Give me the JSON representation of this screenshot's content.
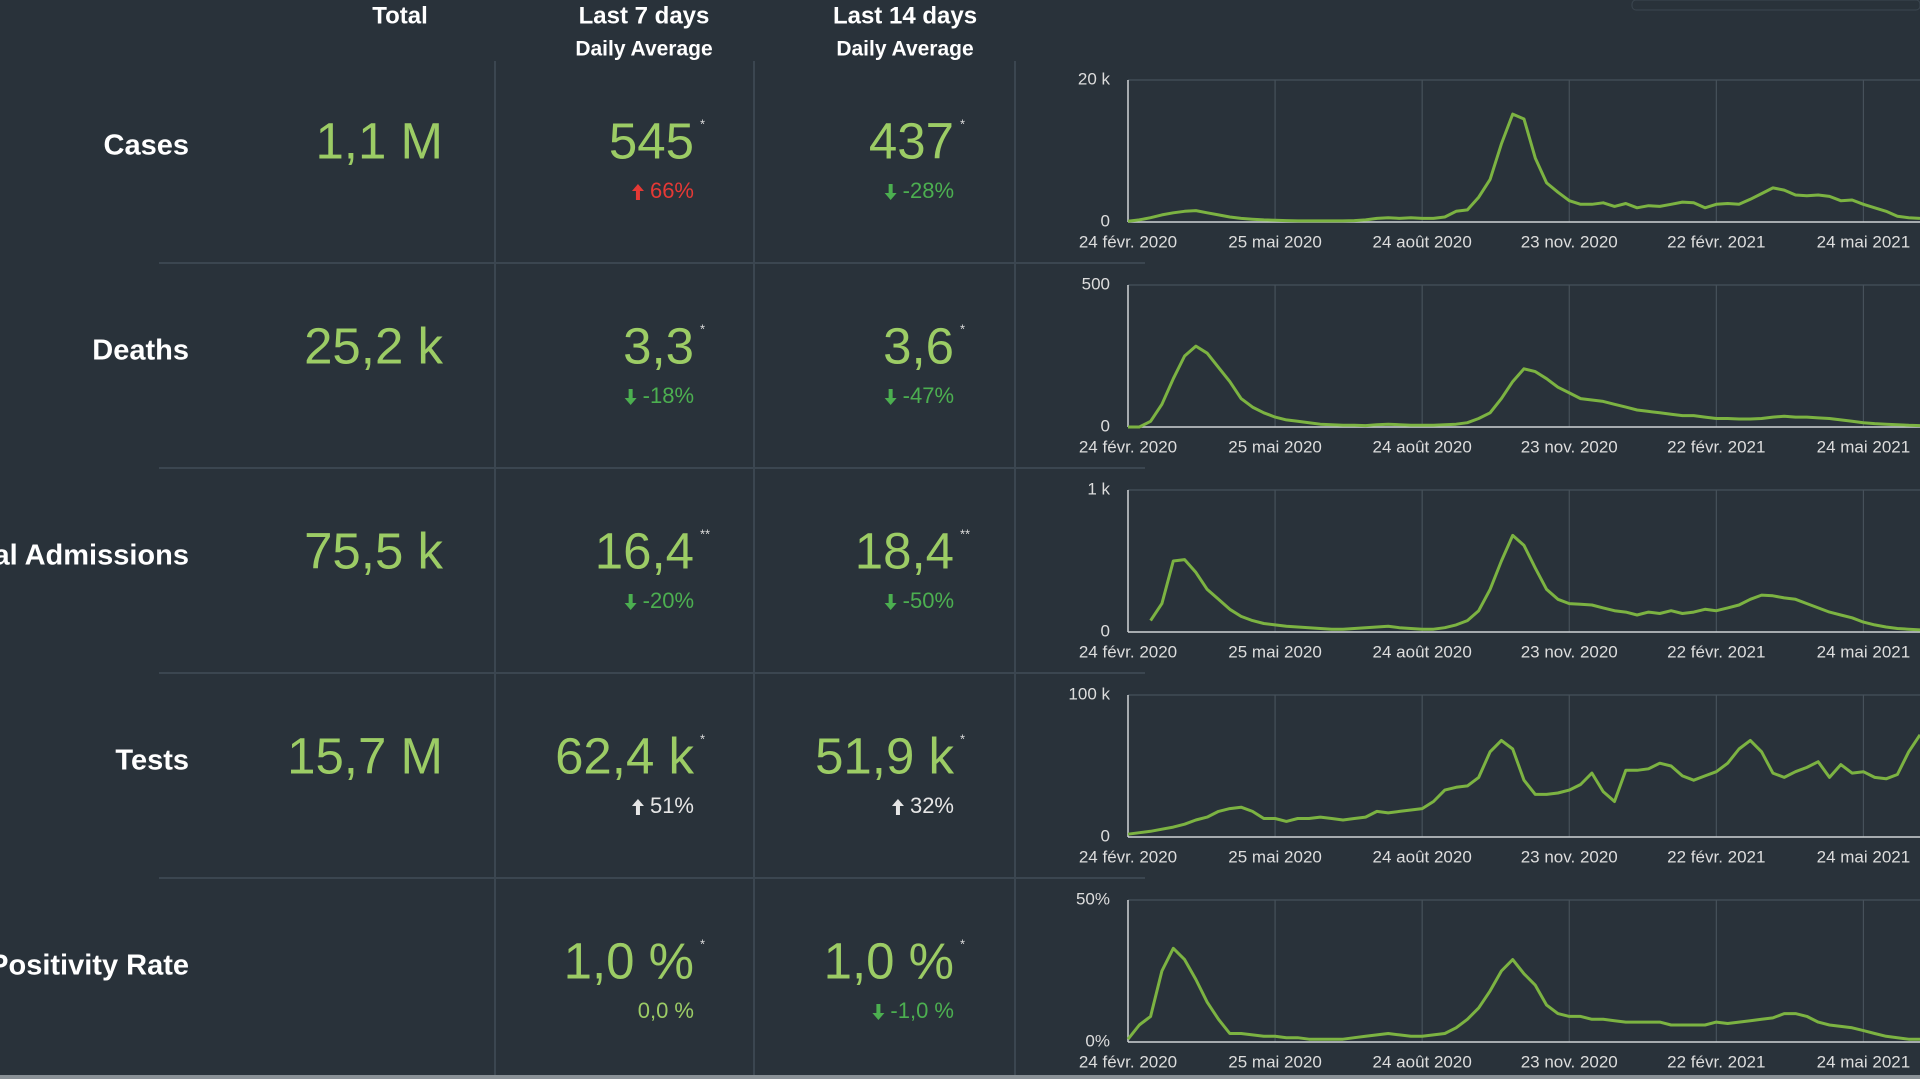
{
  "header": {
    "total": "Total",
    "last7": "Last 7 days",
    "last7_sub": "Daily Average",
    "last14": "Last 14 days",
    "last14_sub": "Daily Average"
  },
  "rows": [
    {
      "label": "Cases",
      "total": "1,1 M",
      "last7": {
        "value": "545",
        "note": "*",
        "change": "66%",
        "trend": "up",
        "color": "#e53935"
      },
      "last14": {
        "value": "437",
        "note": "*",
        "change": "-28%",
        "trend": "down",
        "color": "#4caf50"
      }
    },
    {
      "label": "Deaths",
      "total": "25,2 k",
      "last7": {
        "value": "3,3",
        "note": "*",
        "change": "-18%",
        "trend": "down",
        "color": "#4caf50"
      },
      "last14": {
        "value": "3,6",
        "note": "*",
        "change": "-47%",
        "trend": "down",
        "color": "#4caf50"
      }
    },
    {
      "label": "Hospital Admissions",
      "total": "75,5 k",
      "last7": {
        "value": "16,4",
        "note": "**",
        "change": "-20%",
        "trend": "down",
        "color": "#4caf50"
      },
      "last14": {
        "value": "18,4",
        "note": "**",
        "change": "-50%",
        "trend": "down",
        "color": "#4caf50"
      }
    },
    {
      "label": "Tests",
      "total": "15,7 M",
      "last7": {
        "value": "62,4 k",
        "note": "*",
        "change": "51%",
        "trend": "up",
        "color": "#e6e6e6"
      },
      "last14": {
        "value": "51,9 k",
        "note": "*",
        "change": "32%",
        "trend": "up",
        "color": "#e6e6e6"
      }
    },
    {
      "label": "Positivity Rate",
      "last7": {
        "value": "1,0 %",
        "note": "*",
        "change": "0,0 %",
        "color": "#9ccc65"
      },
      "last14": {
        "value": "1,0 %",
        "note": "*",
        "change": "-1,0 %",
        "trend": "down",
        "color": "#4caf50"
      }
    }
  ],
  "chart_data": [
    {
      "type": "line",
      "color": "#7cb342",
      "ylim": [
        0,
        20000
      ],
      "yticks": [
        0,
        {
          "value": 20000,
          "label": "20 k"
        }
      ],
      "grid": true,
      "categories": [
        "24 févr. 2020",
        null,
        null,
        null,
        null,
        null,
        null,
        null,
        null,
        null,
        null,
        null,
        null,
        "25 mai 2020",
        null,
        null,
        null,
        null,
        null,
        null,
        null,
        null,
        null,
        null,
        null,
        null,
        "24 août 2020",
        null,
        null,
        null,
        null,
        null,
        null,
        null,
        null,
        null,
        null,
        null,
        null,
        "23 nov. 2020",
        null,
        null,
        null,
        null,
        null,
        null,
        null,
        null,
        null,
        null,
        null,
        null,
        "22 févr. 2021",
        null,
        null,
        null,
        null,
        null,
        null,
        null,
        null,
        null,
        null,
        null,
        null,
        "24 mai 2021",
        null,
        null,
        null,
        null,
        null
      ],
      "values": [
        100,
        300,
        600,
        1000,
        1300,
        1500,
        1600,
        1300,
        1000,
        700,
        500,
        400,
        300,
        250,
        200,
        150,
        150,
        150,
        150,
        150,
        200,
        300,
        500,
        600,
        500,
        600,
        500,
        500,
        700,
        1500,
        1700,
        3500,
        6000,
        11000,
        15200,
        14500,
        9000,
        5500,
        4200,
        3000,
        2500,
        2500,
        2700,
        2200,
        2600,
        2000,
        2300,
        2200,
        2500,
        2800,
        2700,
        2000,
        2500,
        2600,
        2500,
        3200,
        4000,
        4800,
        4500,
        3800,
        3700,
        3800,
        3600,
        3000,
        3100,
        2500,
        2000,
        1500,
        800,
        600,
        500
      ]
    },
    {
      "type": "line",
      "color": "#7cb342",
      "ylim": [
        0,
        500
      ],
      "yticks": [
        0,
        500
      ],
      "grid": true,
      "categories": [
        "24 févr. 2020",
        null,
        null,
        null,
        null,
        null,
        null,
        null,
        null,
        null,
        null,
        null,
        null,
        "25 mai 2020",
        null,
        null,
        null,
        null,
        null,
        null,
        null,
        null,
        null,
        null,
        null,
        null,
        "24 août 2020",
        null,
        null,
        null,
        null,
        null,
        null,
        null,
        null,
        null,
        null,
        null,
        null,
        "23 nov. 2020",
        null,
        null,
        null,
        null,
        null,
        null,
        null,
        null,
        null,
        null,
        null,
        null,
        "22 févr. 2021",
        null,
        null,
        null,
        null,
        null,
        null,
        null,
        null,
        null,
        null,
        null,
        null,
        "24 mai 2021",
        null,
        null,
        null,
        null,
        null
      ],
      "values": [
        0,
        0,
        20,
        80,
        170,
        250,
        285,
        260,
        210,
        160,
        100,
        70,
        50,
        35,
        25,
        20,
        15,
        10,
        8,
        6,
        6,
        5,
        8,
        10,
        8,
        6,
        6,
        6,
        8,
        10,
        15,
        30,
        50,
        100,
        160,
        205,
        195,
        170,
        140,
        120,
        100,
        95,
        90,
        80,
        70,
        60,
        55,
        50,
        45,
        40,
        40,
        35,
        30,
        30,
        28,
        28,
        30,
        35,
        38,
        35,
        35,
        32,
        30,
        25,
        20,
        15,
        12,
        10,
        8,
        6,
        5
      ]
    },
    {
      "type": "line",
      "color": "#7cb342",
      "ylim": [
        0,
        1000
      ],
      "yticks": [
        0,
        {
          "value": 1000,
          "label": "1 k"
        }
      ],
      "grid": true,
      "categories": [
        "24 févr. 2020",
        null,
        null,
        null,
        null,
        null,
        null,
        null,
        null,
        null,
        null,
        null,
        null,
        "25 mai 2020",
        null,
        null,
        null,
        null,
        null,
        null,
        null,
        null,
        null,
        null,
        null,
        null,
        "24 août 2020",
        null,
        null,
        null,
        null,
        null,
        null,
        null,
        null,
        null,
        null,
        null,
        null,
        "23 nov. 2020",
        null,
        null,
        null,
        null,
        null,
        null,
        null,
        null,
        null,
        null,
        null,
        null,
        "22 févr. 2021",
        null,
        null,
        null,
        null,
        null,
        null,
        null,
        null,
        null,
        null,
        null,
        null,
        "24 mai 2021",
        null,
        null,
        null,
        null,
        null
      ],
      "values": [
        null,
        null,
        80,
        200,
        500,
        510,
        420,
        300,
        230,
        160,
        110,
        80,
        60,
        50,
        40,
        35,
        30,
        25,
        20,
        20,
        25,
        30,
        35,
        40,
        30,
        25,
        20,
        20,
        30,
        50,
        80,
        150,
        300,
        500,
        680,
        610,
        450,
        300,
        230,
        200,
        195,
        190,
        170,
        150,
        140,
        120,
        140,
        130,
        150,
        130,
        140,
        160,
        150,
        170,
        190,
        230,
        260,
        255,
        240,
        230,
        200,
        170,
        140,
        120,
        100,
        70,
        50,
        35,
        25,
        20,
        15
      ]
    },
    {
      "type": "line",
      "color": "#7cb342",
      "ylim": [
        0,
        100000
      ],
      "yticks": [
        0,
        {
          "value": 100000,
          "label": "100 k"
        }
      ],
      "grid": true,
      "categories": [
        "24 févr. 2020",
        null,
        null,
        null,
        null,
        null,
        null,
        null,
        null,
        null,
        null,
        null,
        null,
        "25 mai 2020",
        null,
        null,
        null,
        null,
        null,
        null,
        null,
        null,
        null,
        null,
        null,
        null,
        "24 août 2020",
        null,
        null,
        null,
        null,
        null,
        null,
        null,
        null,
        null,
        null,
        null,
        null,
        "23 nov. 2020",
        null,
        null,
        null,
        null,
        null,
        null,
        null,
        null,
        null,
        null,
        null,
        null,
        "22 févr. 2021",
        null,
        null,
        null,
        null,
        null,
        null,
        null,
        null,
        null,
        null,
        null,
        null,
        "24 mai 2021",
        null,
        null,
        null,
        null,
        null
      ],
      "values": [
        2000,
        3000,
        4000,
        5500,
        7000,
        9000,
        12000,
        14000,
        18000,
        20000,
        21000,
        18000,
        13000,
        13000,
        11000,
        13000,
        13000,
        14000,
        13000,
        12000,
        13000,
        14000,
        18000,
        17000,
        18000,
        19000,
        20000,
        25000,
        33000,
        35000,
        36000,
        42000,
        60000,
        68000,
        62000,
        40000,
        30000,
        30000,
        31000,
        33000,
        37000,
        45000,
        32000,
        25000,
        47000,
        47000,
        48000,
        52000,
        50000,
        43000,
        40000,
        43000,
        46000,
        52000,
        62000,
        68000,
        60000,
        45000,
        42000,
        46000,
        49000,
        53000,
        42000,
        51000,
        45000,
        46000,
        42000,
        41000,
        44000,
        60000,
        72000
      ]
    },
    {
      "type": "line",
      "color": "#7cb342",
      "ylim": [
        0,
        50
      ],
      "yticks": [
        {
          "value": 0,
          "label": "0%"
        },
        {
          "value": 50,
          "label": "50%"
        }
      ],
      "grid": true,
      "categories": [
        "24 févr. 2020",
        null,
        null,
        null,
        null,
        null,
        null,
        null,
        null,
        null,
        null,
        null,
        null,
        "25 mai 2020",
        null,
        null,
        null,
        null,
        null,
        null,
        null,
        null,
        null,
        null,
        null,
        null,
        "24 août 2020",
        null,
        null,
        null,
        null,
        null,
        null,
        null,
        null,
        null,
        null,
        null,
        null,
        "23 nov. 2020",
        null,
        null,
        null,
        null,
        null,
        null,
        null,
        null,
        null,
        null,
        null,
        null,
        "22 févr. 2021",
        null,
        null,
        null,
        null,
        null,
        null,
        null,
        null,
        null,
        null,
        null,
        null,
        "24 mai 2021",
        null,
        null,
        null,
        null,
        null
      ],
      "values": [
        1,
        6,
        9,
        25,
        33,
        29,
        22,
        14,
        8,
        3,
        3,
        2.5,
        2,
        2,
        1.5,
        1.5,
        1,
        1,
        1,
        1,
        1.5,
        2,
        2.5,
        3,
        2.5,
        2,
        2,
        2.5,
        3,
        5,
        8,
        12,
        18,
        25,
        29,
        24,
        20,
        13,
        10,
        9,
        9,
        8,
        8,
        7.5,
        7,
        7,
        7,
        7,
        6,
        6,
        6,
        6,
        7,
        6.5,
        7,
        7.5,
        8,
        8.5,
        10,
        10,
        9,
        7,
        6,
        5.5,
        5,
        4,
        3,
        2,
        1.5,
        1,
        1
      ]
    }
  ]
}
